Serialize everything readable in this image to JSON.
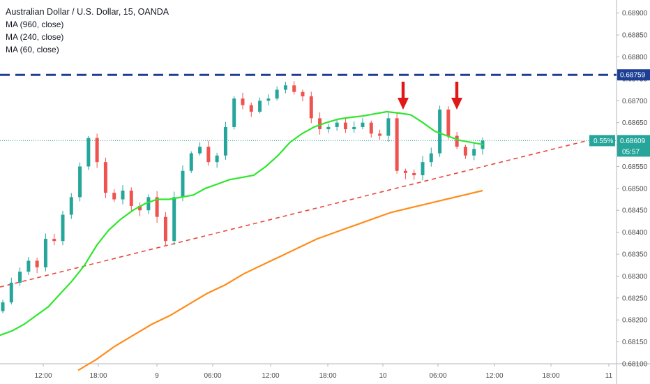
{
  "chart_data": {
    "type": "candlestick",
    "title": "Australian Dollar / U.S. Dollar, 15, OANDA",
    "indicators": [
      {
        "name": "MA (960, close)",
        "color": "#ff8c1a"
      },
      {
        "name": "MA (240, close)",
        "color": "#2ee62e"
      },
      {
        "name": "MA (60, close)",
        "color": "#2ee62e"
      }
    ],
    "y_axis": {
      "ticks": [
        "0.68900",
        "0.68850",
        "0.68800",
        "0.68750",
        "0.68700",
        "0.68650",
        "0.68600",
        "0.68550",
        "0.68500",
        "0.68450",
        "0.68400",
        "0.68350",
        "0.68300",
        "0.68250",
        "0.68200",
        "0.68150",
        "0.68100"
      ],
      "range": [
        0.681,
        0.68925
      ]
    },
    "x_axis": {
      "ticks": [
        "12:00",
        "18:00",
        "9",
        "06:00",
        "12:00",
        "18:00",
        "10",
        "06:00",
        "12:00",
        "18:00",
        "11"
      ]
    },
    "resistance": {
      "value": 0.68759,
      "label": "0.68759",
      "color": "#1c3f94"
    },
    "current_price": {
      "value": 0.68609,
      "label": "0.68609",
      "change": "0.55%",
      "countdown": "05:57",
      "color": "#26a69a"
    },
    "trendline": {
      "from": [
        0,
        0.68275
      ],
      "to": [
        63,
        0.68609
      ],
      "color": "#e8463a"
    },
    "arrows": [
      {
        "bar": 45,
        "color": "#e01818"
      },
      {
        "bar": 51,
        "color": "#e01818"
      }
    ],
    "candle_colors": {
      "up": "#26a69a",
      "down": "#ef5350"
    },
    "candles_close": [
      0.6824,
      0.68285,
      0.6831,
      0.68335,
      0.6832,
      0.68385,
      0.6838,
      0.6844,
      0.6848,
      0.6855,
      0.68615,
      0.6856,
      0.6849,
      0.68475,
      0.68495,
      0.6846,
      0.6845,
      0.6848,
      0.68435,
      0.6838,
      0.6848,
      0.6854,
      0.6858,
      0.68595,
      0.6856,
      0.68575,
      0.6864,
      0.68705,
      0.6869,
      0.68675,
      0.687,
      0.68705,
      0.68725,
      0.68735,
      0.6872,
      0.6871,
      0.6866,
      0.68635,
      0.6864,
      0.6865,
      0.68635,
      0.6864,
      0.6865,
      0.68625,
      0.6862,
      0.6866,
      0.6854,
      0.68535,
      0.6853,
      0.6856,
      0.6858,
      0.6868,
      0.6862,
      0.68595,
      0.68575,
      0.6859,
      0.68609
    ],
    "ma60": [
      0.68165,
      0.68175,
      0.6819,
      0.6821,
      0.6823,
      0.6826,
      0.6829,
      0.68325,
      0.6837,
      0.68405,
      0.6843,
      0.6845,
      0.68465,
      0.68475,
      0.68475,
      0.6848,
      0.68485,
      0.685,
      0.6851,
      0.6852,
      0.68525,
      0.6853,
      0.6855,
      0.68575,
      0.68605,
      0.68625,
      0.6864,
      0.6865,
      0.68658,
      0.68662,
      0.68665,
      0.6867,
      0.68675,
      0.68672,
      0.68668,
      0.6865,
      0.6863,
      0.6862,
      0.6861,
      0.68605,
      0.686
    ],
    "ma240": [
      0.68085,
      0.6811,
      0.6814,
      0.68165,
      0.6819,
      0.6821,
      0.68235,
      0.6826,
      0.6828,
      0.68305,
      0.68325,
      0.68345,
      0.68365,
      0.68385,
      0.684,
      0.68415,
      0.6843,
      0.68445,
      0.68455,
      0.68465,
      0.68475,
      0.68485,
      0.68495
    ]
  }
}
